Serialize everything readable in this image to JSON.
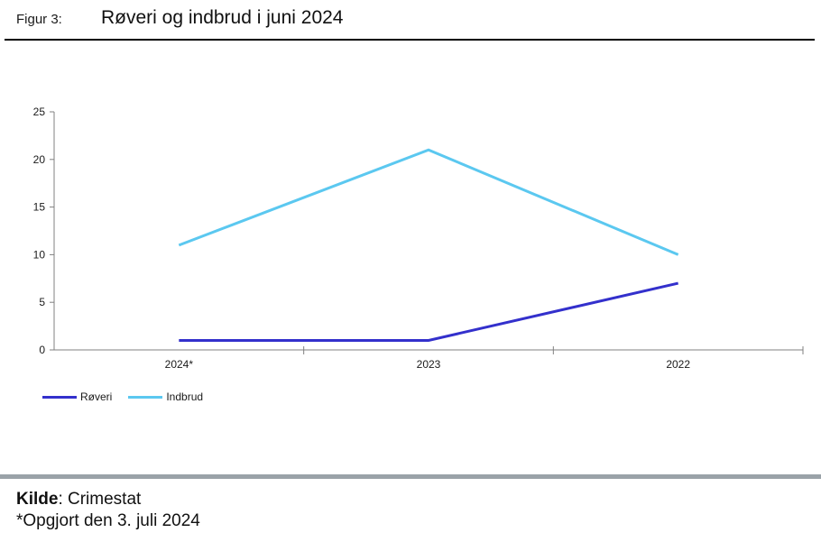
{
  "header": {
    "figure_label": "Figur 3:",
    "title": "Røveri og indbrud i juni 2024"
  },
  "chart_data": {
    "type": "line",
    "title": "",
    "xlabel": "",
    "ylabel": "",
    "categories": [
      "2024*",
      "2023",
      "2022"
    ],
    "series": [
      {
        "name": "Røveri",
        "color": "#3330cc",
        "values": [
          1,
          1,
          7
        ]
      },
      {
        "name": "Indbrud",
        "color": "#5bc8f0",
        "values": [
          11,
          21,
          10
        ]
      }
    ],
    "ylim": [
      0,
      25
    ],
    "yticks": [
      0,
      5,
      10,
      15,
      20,
      25
    ],
    "grid": false,
    "legend_position": "bottom-left",
    "axis_color": "#808080",
    "tick_label_color": "#1a1a1a"
  },
  "footer": {
    "source_bold": "Kilde",
    "source_rest": ": Crimestat",
    "note": "*Opgjort den 3. juli 2024"
  }
}
